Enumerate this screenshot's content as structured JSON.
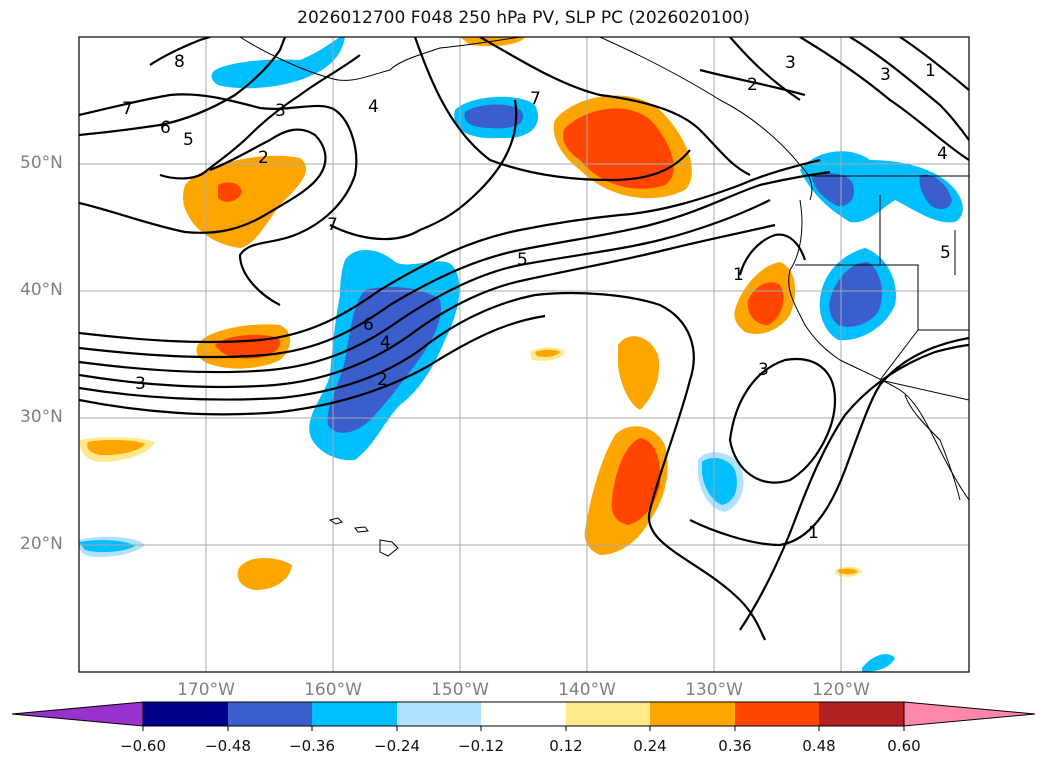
{
  "title": "2026012700 F048 250 hPa PV, SLP PC (2026020100)",
  "map": {
    "projection": "cylindrical",
    "lon_range_deg": [
      -180,
      -110
    ],
    "lat_range_deg": [
      10,
      60
    ],
    "lat_labels": [
      "50°N",
      "40°N",
      "30°N",
      "20°N"
    ],
    "lon_labels": [
      "170°W",
      "160°W",
      "150°W",
      "140°W",
      "130°W",
      "120°W"
    ],
    "contour_labels": [
      "8",
      "7",
      "6",
      "5",
      "3",
      "2",
      "4",
      "7",
      "7",
      "6",
      "4",
      "2",
      "3",
      "5",
      "2",
      "3",
      "1",
      "1",
      "3",
      "1",
      "3",
      "4",
      "5"
    ],
    "fields": {
      "shaded": "250 hPa PV anomaly",
      "contours": "SLP PC"
    }
  },
  "colorbar": {
    "ticks": [
      "−0.60",
      "−0.48",
      "−0.36",
      "−0.24",
      "−0.12",
      "0.12",
      "0.24",
      "0.36",
      "0.48",
      "0.60"
    ],
    "colors": [
      "#9932CC",
      "#00008B",
      "#3A5FCD",
      "#00BFFF",
      "#B0E2FF",
      "#FFFFFF",
      "#FFE98A",
      "#FFA500",
      "#FF4500",
      "#B22222",
      "#FF88AA"
    ]
  }
}
